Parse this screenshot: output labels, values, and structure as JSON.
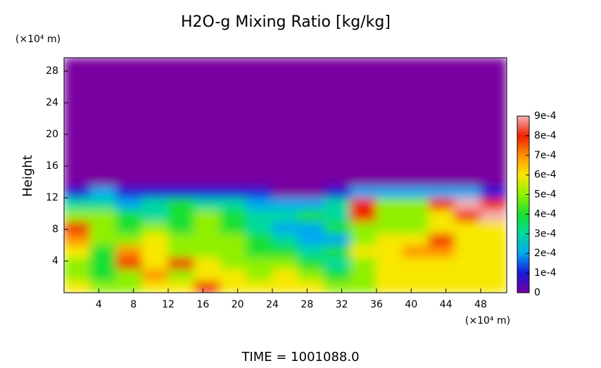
{
  "chart_data": {
    "type": "heatmap",
    "title": "H2O-g Mixing Ratio [kg/kg]",
    "ylabel": "Height",
    "x_unit": "(×10⁴ m)",
    "y_unit": "(×10⁴ m)",
    "annotation": "TIME = 1001088.0",
    "xlim": [
      0,
      51
    ],
    "ylim": [
      0,
      29.7
    ],
    "xticks": [
      4,
      8,
      12,
      16,
      20,
      24,
      28,
      32,
      36,
      40,
      44,
      48
    ],
    "yticks": [
      4,
      8,
      12,
      16,
      20,
      24,
      28
    ],
    "x_bins": [
      0,
      3,
      6,
      9,
      12,
      15,
      18,
      21,
      24,
      27,
      30,
      33,
      36,
      39,
      42,
      45,
      48,
      51
    ],
    "y_bins": [
      0,
      1.5,
      3,
      4.5,
      6,
      7.5,
      9,
      10.5,
      12,
      13.5,
      29.7
    ],
    "z": [
      [
        0.0006,
        0.0005,
        0.0005,
        0.0006,
        0.0006,
        0.0008,
        0.0006,
        0.0006,
        0.0006,
        0.0006,
        0.0005,
        0.0005,
        0.0006,
        0.0006,
        0.0006,
        0.0006,
        0.0006
      ],
      [
        0.0005,
        0.0004,
        0.0005,
        0.0007,
        0.0005,
        0.0006,
        0.0006,
        0.0005,
        0.0006,
        0.0005,
        0.0004,
        0.0005,
        0.0006,
        0.0006,
        0.0006,
        0.0006,
        0.0006
      ],
      [
        0.0005,
        0.0004,
        0.0008,
        0.0006,
        0.0008,
        0.0006,
        0.0005,
        0.0005,
        0.0005,
        0.0004,
        0.0003,
        0.0005,
        0.0006,
        0.0006,
        0.0006,
        0.0006,
        0.0006
      ],
      [
        0.0006,
        0.0004,
        0.0007,
        0.0006,
        0.0005,
        0.0005,
        0.0005,
        0.0004,
        0.0004,
        0.0003,
        0.0004,
        0.0006,
        0.0006,
        0.0007,
        0.0007,
        0.0006,
        0.0006
      ],
      [
        0.0007,
        0.0005,
        0.0005,
        0.0006,
        0.0005,
        0.0005,
        0.0005,
        0.0004,
        0.0003,
        0.0002,
        0.0002,
        0.0005,
        0.0006,
        0.0006,
        0.0008,
        0.0006,
        0.0006
      ],
      [
        0.0008,
        0.0005,
        0.0004,
        0.0005,
        0.0004,
        0.0005,
        0.0004,
        0.0003,
        0.0002,
        0.0002,
        0.0004,
        0.0005,
        0.0005,
        0.0005,
        0.0006,
        0.0006,
        0.0006
      ],
      [
        0.0005,
        0.0005,
        0.0004,
        0.0003,
        0.0004,
        0.0005,
        0.0004,
        0.0003,
        0.0003,
        0.0004,
        0.0003,
        0.0008,
        0.0005,
        0.0005,
        0.0006,
        0.0008,
        0.0009
      ],
      [
        0.0003,
        0.0003,
        0.0002,
        0.0003,
        0.0004,
        0.0003,
        0.0003,
        0.0002,
        0.0002,
        0.0002,
        0.0003,
        0.0008,
        0.0005,
        0.0005,
        0.0008,
        0.0009,
        0.0008
      ],
      [
        0.0001,
        0.0002,
        0.0001,
        0.0001,
        0.0001,
        0.0001,
        0.0001,
        0.0001,
        0,
        0,
        0.0001,
        0.0002,
        0.0002,
        0.0002,
        0.0002,
        0.0002,
        0.0001
      ],
      [
        0,
        0,
        0,
        0,
        0,
        0,
        0,
        0,
        0,
        0,
        0,
        0,
        0,
        0,
        0,
        0,
        0
      ]
    ],
    "colorbar_ticks": [
      0,
      {
        "value": 0.0001,
        "label": "1e-4"
      },
      {
        "value": 0.0002,
        "label": "2e-4"
      },
      {
        "value": 0.0003,
        "label": "3e-4"
      },
      {
        "value": 0.0004,
        "label": "4e-4"
      },
      {
        "value": 0.0005,
        "label": "5e-4"
      },
      {
        "value": 0.0006,
        "label": "6e-4"
      },
      {
        "value": 0.0007,
        "label": "7e-4"
      },
      {
        "value": 0.0008,
        "label": "8e-4"
      },
      {
        "value": 0.0009,
        "label": "9e-4"
      }
    ],
    "colorscale": [
      "#7800a0",
      "#1818d8",
      "#00a8f0",
      "#00d8a0",
      "#18e030",
      "#90f000",
      "#f8e800",
      "#ff9000",
      "#f02000",
      "#f4b0b0"
    ]
  }
}
